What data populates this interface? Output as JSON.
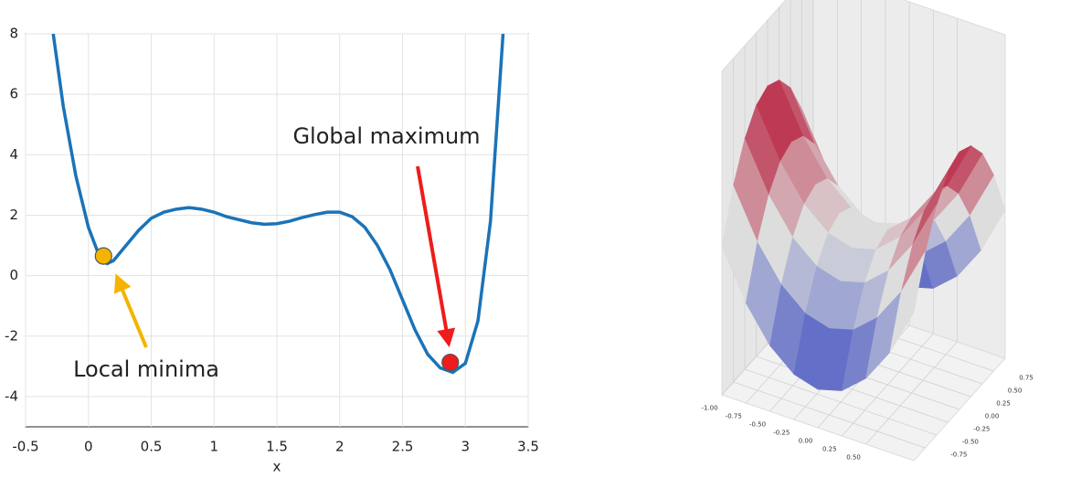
{
  "chart_data": [
    {
      "type": "line",
      "xlabel": "x",
      "x": [
        -0.28,
        -0.2,
        -0.1,
        0,
        0.1,
        0.15,
        0.2,
        0.3,
        0.4,
        0.5,
        0.6,
        0.7,
        0.8,
        0.9,
        1.0,
        1.1,
        1.2,
        1.3,
        1.4,
        1.5,
        1.6,
        1.7,
        1.8,
        1.9,
        2.0,
        2.1,
        2.2,
        2.3,
        2.4,
        2.5,
        2.6,
        2.7,
        2.8,
        2.9,
        3.0,
        3.1,
        3.2,
        3.3
      ],
      "series": [
        {
          "color": "#1a73b8",
          "values": [
            8,
            5.6,
            3.3,
            1.6,
            0.5,
            0.4,
            0.5,
            1.0,
            1.5,
            1.9,
            2.1,
            2.2,
            2.25,
            2.2,
            2.1,
            1.95,
            1.85,
            1.75,
            1.7,
            1.72,
            1.8,
            1.92,
            2.02,
            2.1,
            2.1,
            1.95,
            1.6,
            1.0,
            0.2,
            -0.8,
            -1.8,
            -2.6,
            -3.05,
            -3.2,
            -2.9,
            -1.5,
            1.8,
            8
          ]
        }
      ],
      "markers": [
        {
          "x": 0.12,
          "y": 0.65,
          "color": "#f5b400"
        },
        {
          "x": 2.88,
          "y": -2.87,
          "color": "#ee1c1c"
        }
      ],
      "annotations": [
        "Global maximum",
        "Local minima"
      ],
      "xlim": [
        -0.5,
        3.5
      ],
      "xticks": [
        -0.5,
        0,
        0.5,
        1,
        1.5,
        2,
        2.5,
        3,
        3.5
      ],
      "ylim": [
        -5,
        8
      ],
      "yticks": [
        -4,
        -2,
        0,
        2,
        4,
        6,
        8
      ],
      "grid": true
    },
    {
      "type": "surface",
      "x": [
        -1,
        -0.75,
        -0.5,
        -0.25,
        0,
        0.25,
        0.5,
        0.75,
        1
      ],
      "y": [
        -1,
        -0.75,
        -0.5,
        -0.25,
        0,
        0.25,
        0.5,
        0.75,
        1
      ],
      "z": [
        [
          0,
          -0.4375,
          -0.75,
          -0.9375,
          -1,
          -0.9375,
          -0.75,
          -0.4375,
          0
        ],
        [
          0.4375,
          0,
          -0.3125,
          -0.5,
          -0.5625,
          -0.5,
          -0.3125,
          0,
          0.4375
        ],
        [
          0.75,
          0.3125,
          0,
          -0.1875,
          -0.25,
          -0.1875,
          0,
          0.3125,
          0.75
        ],
        [
          0.9375,
          0.5,
          0.1875,
          0,
          -0.0625,
          0,
          0.1875,
          0.5,
          0.9375
        ],
        [
          1,
          0.5625,
          0.25,
          0.0625,
          0,
          0.0625,
          0.25,
          0.5625,
          1
        ],
        [
          0.9375,
          0.5,
          0.1875,
          0,
          -0.0625,
          0,
          0.1875,
          0.5,
          0.9375
        ],
        [
          0.75,
          0.3125,
          0,
          -0.1875,
          -0.25,
          -0.1875,
          0,
          0.3125,
          0.75
        ],
        [
          0.4375,
          0,
          -0.3125,
          -0.5,
          -0.5625,
          -0.5,
          -0.3125,
          0,
          0.4375
        ],
        [
          0,
          -0.4375,
          -0.75,
          -0.9375,
          -1,
          -0.9375,
          -0.75,
          -0.4375,
          0
        ]
      ],
      "xticks": [
        {
          "value": -1,
          "label": "-1.00"
        },
        {
          "value": -0.75,
          "label": "-0.75"
        },
        {
          "value": -0.5,
          "label": "-0.50"
        },
        {
          "value": -0.25,
          "label": "-0.25"
        },
        {
          "value": 0,
          "label": "0.00"
        },
        {
          "value": 0.25,
          "label": "0.25"
        },
        {
          "value": 0.5,
          "label": "0.50"
        }
      ],
      "yticks": [
        {
          "value": -0.75,
          "label": "-0.75"
        },
        {
          "value": -0.5,
          "label": "-0.50"
        },
        {
          "value": -0.25,
          "label": "-0.25"
        },
        {
          "value": 0,
          "label": "0.00"
        },
        {
          "value": 0.25,
          "label": "0.25"
        },
        {
          "value": 0.5,
          "label": "0.50"
        },
        {
          "value": 0.75,
          "label": "0.75"
        }
      ]
    }
  ]
}
